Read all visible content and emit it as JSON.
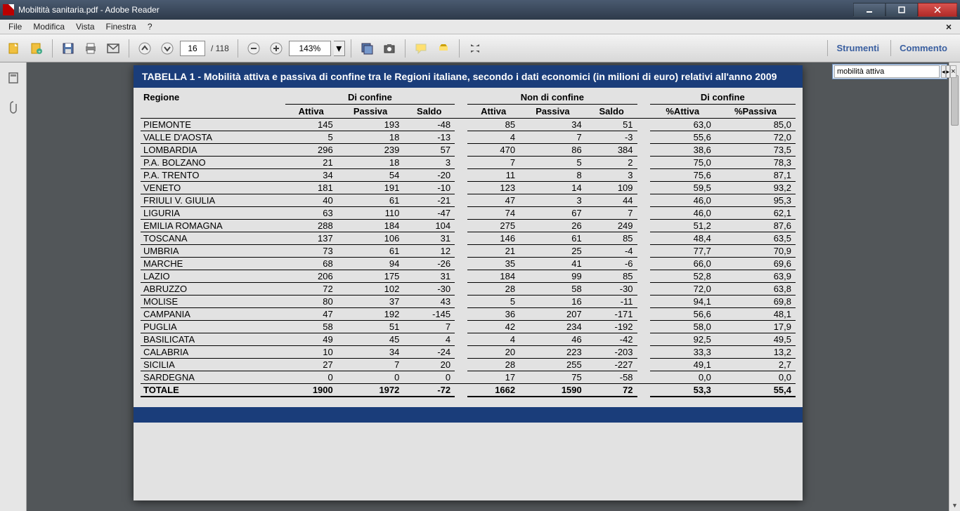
{
  "window": {
    "title": "Mobiltità sanitaria.pdf - Adobe Reader"
  },
  "menu": {
    "file": "File",
    "modifica": "Modifica",
    "vista": "Vista",
    "finestra": "Finestra",
    "help": "?"
  },
  "toolbar": {
    "page_current": "16",
    "page_total": "/ 118",
    "zoom": "143%",
    "strumenti": "Strumenti",
    "commento": "Commento"
  },
  "find": {
    "value": "mobilità attiva"
  },
  "table": {
    "title": "TABELLA 1 - Mobilità attiva e passiva di confine tra le Regioni italiane, secondo i dati economici (in milioni di euro) relativi all'anno 2009",
    "col_regione": "Regione",
    "grp1": "Di confine",
    "grp2": "Non di confine",
    "grp3": "Di confine",
    "sub_attiva": "Attiva",
    "sub_passiva": "Passiva",
    "sub_saldo": "Saldo",
    "sub_pct_attiva": "%Attiva",
    "sub_pct_passiva": "%Passiva",
    "rows": [
      {
        "r": "PIEMONTE",
        "a1": "145",
        "p1": "193",
        "s1": "-48",
        "a2": "85",
        "p2": "34",
        "s2": "51",
        "pa": "63,0",
        "pp": "85,0"
      },
      {
        "r": "VALLE D'AOSTA",
        "a1": "5",
        "p1": "18",
        "s1": "-13",
        "a2": "4",
        "p2": "7",
        "s2": "-3",
        "pa": "55,6",
        "pp": "72,0"
      },
      {
        "r": "LOMBARDIA",
        "a1": "296",
        "p1": "239",
        "s1": "57",
        "a2": "470",
        "p2": "86",
        "s2": "384",
        "pa": "38,6",
        "pp": "73,5"
      },
      {
        "r": "P.A. BOLZANO",
        "a1": "21",
        "p1": "18",
        "s1": "3",
        "a2": "7",
        "p2": "5",
        "s2": "2",
        "pa": "75,0",
        "pp": "78,3"
      },
      {
        "r": "P.A. TRENTO",
        "a1": "34",
        "p1": "54",
        "s1": "-20",
        "a2": "11",
        "p2": "8",
        "s2": "3",
        "pa": "75,6",
        "pp": "87,1"
      },
      {
        "r": "VENETO",
        "a1": "181",
        "p1": "191",
        "s1": "-10",
        "a2": "123",
        "p2": "14",
        "s2": "109",
        "pa": "59,5",
        "pp": "93,2"
      },
      {
        "r": "FRIULI V. GIULIA",
        "a1": "40",
        "p1": "61",
        "s1": "-21",
        "a2": "47",
        "p2": "3",
        "s2": "44",
        "pa": "46,0",
        "pp": "95,3"
      },
      {
        "r": "LIGURIA",
        "a1": "63",
        "p1": "110",
        "s1": "-47",
        "a2": "74",
        "p2": "67",
        "s2": "7",
        "pa": "46,0",
        "pp": "62,1"
      },
      {
        "r": "EMILIA ROMAGNA",
        "a1": "288",
        "p1": "184",
        "s1": "104",
        "a2": "275",
        "p2": "26",
        "s2": "249",
        "pa": "51,2",
        "pp": "87,6"
      },
      {
        "r": "TOSCANA",
        "a1": "137",
        "p1": "106",
        "s1": "31",
        "a2": "146",
        "p2": "61",
        "s2": "85",
        "pa": "48,4",
        "pp": "63,5"
      },
      {
        "r": "UMBRIA",
        "a1": "73",
        "p1": "61",
        "s1": "12",
        "a2": "21",
        "p2": "25",
        "s2": "-4",
        "pa": "77,7",
        "pp": "70,9"
      },
      {
        "r": "MARCHE",
        "a1": "68",
        "p1": "94",
        "s1": "-26",
        "a2": "35",
        "p2": "41",
        "s2": "-6",
        "pa": "66,0",
        "pp": "69,6"
      },
      {
        "r": "LAZIO",
        "a1": "206",
        "p1": "175",
        "s1": "31",
        "a2": "184",
        "p2": "99",
        "s2": "85",
        "pa": "52,8",
        "pp": "63,9"
      },
      {
        "r": "ABRUZZO",
        "a1": "72",
        "p1": "102",
        "s1": "-30",
        "a2": "28",
        "p2": "58",
        "s2": "-30",
        "pa": "72,0",
        "pp": "63,8"
      },
      {
        "r": "MOLISE",
        "a1": "80",
        "p1": "37",
        "s1": "43",
        "a2": "5",
        "p2": "16",
        "s2": "-11",
        "pa": "94,1",
        "pp": "69,8"
      },
      {
        "r": "CAMPANIA",
        "a1": "47",
        "p1": "192",
        "s1": "-145",
        "a2": "36",
        "p2": "207",
        "s2": "-171",
        "pa": "56,6",
        "pp": "48,1"
      },
      {
        "r": "PUGLIA",
        "a1": "58",
        "p1": "51",
        "s1": "7",
        "a2": "42",
        "p2": "234",
        "s2": "-192",
        "pa": "58,0",
        "pp": "17,9"
      },
      {
        "r": "BASILICATA",
        "a1": "49",
        "p1": "45",
        "s1": "4",
        "a2": "4",
        "p2": "46",
        "s2": "-42",
        "pa": "92,5",
        "pp": "49,5"
      },
      {
        "r": "CALABRIA",
        "a1": "10",
        "p1": "34",
        "s1": "-24",
        "a2": "20",
        "p2": "223",
        "s2": "-203",
        "pa": "33,3",
        "pp": "13,2"
      },
      {
        "r": "SICILIA",
        "a1": "27",
        "p1": "7",
        "s1": "20",
        "a2": "28",
        "p2": "255",
        "s2": "-227",
        "pa": "49,1",
        "pp": "2,7"
      },
      {
        "r": "SARDEGNA",
        "a1": "0",
        "p1": "0",
        "s1": "0",
        "a2": "17",
        "p2": "75",
        "s2": "-58",
        "pa": "0,0",
        "pp": "0,0"
      }
    ],
    "total": {
      "r": "TOTALE",
      "a1": "1900",
      "p1": "1972",
      "s1": "-72",
      "a2": "1662",
      "p2": "1590",
      "s2": "72",
      "pa": "53,3",
      "pp": "55,4"
    }
  },
  "colors": {
    "header_blue": "#1a3d7a",
    "page_bg": "#e2e2e2",
    "doc_bg": "#525659",
    "link_blue": "#3a5fa0"
  }
}
